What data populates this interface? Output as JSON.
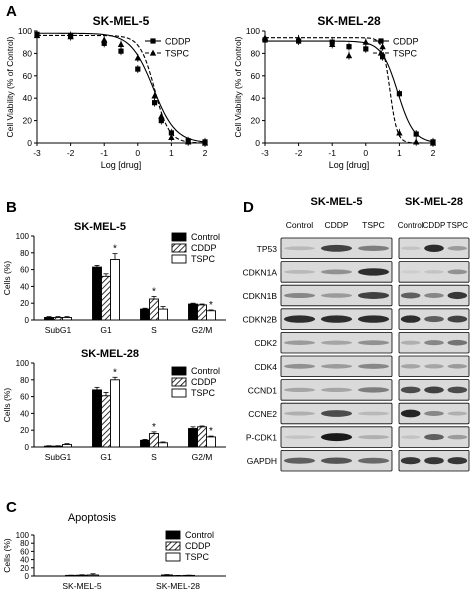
{
  "colors": {
    "black": "#000000",
    "white": "#ffffff",
    "axis": "#000000",
    "blot_bg": "#dcdcdc"
  },
  "panel_letters": [
    "A",
    "B",
    "C",
    "D"
  ],
  "chart_data": [
    {
      "panel": "A",
      "type": "line",
      "title": "SK-MEL-5",
      "xlabel": "Log [drug]",
      "ylabel": "Cell Viability (% of Control)",
      "xlim": [
        -3,
        2
      ],
      "ylim": [
        0,
        100
      ],
      "xticks": [
        "-3",
        "-2",
        "-1",
        "0",
        "1",
        "2"
      ],
      "yticks": [
        "0",
        "20",
        "40",
        "60",
        "80",
        "100"
      ],
      "legend": [
        "CDDP",
        "TSPC"
      ],
      "legend_position": "top-right",
      "series": [
        {
          "name": "CDDP",
          "marker": "square",
          "style": "solid",
          "x": [
            -3,
            -2,
            -1,
            -0.5,
            0,
            0.5,
            0.7,
            1,
            1.5,
            2
          ],
          "y": [
            97,
            96,
            89,
            82,
            66,
            36,
            20,
            9,
            2,
            1
          ],
          "curve": {
            "top": 98,
            "bottom": 0,
            "logIC50": 0.46,
            "hill": 1.3
          }
        },
        {
          "name": "TSPC",
          "marker": "triangle",
          "style": "dashed",
          "x": [
            -3,
            -2,
            -1,
            -0.5,
            0,
            0.5,
            0.7,
            1,
            1.5,
            2
          ],
          "y": [
            96,
            95,
            92,
            88,
            76,
            42,
            24,
            5,
            1,
            0
          ],
          "curve": {
            "top": 96,
            "bottom": 0,
            "logIC50": 0.5,
            "hill": 2.0
          }
        }
      ]
    },
    {
      "panel": "A",
      "type": "line",
      "title": "SK-MEL-28",
      "xlabel": "Log [drug]",
      "ylabel": "Cell Viability (% of Control)",
      "xlim": [
        -3,
        2
      ],
      "ylim": [
        0,
        100
      ],
      "xticks": [
        "-3",
        "-2",
        "-1",
        "0",
        "1",
        "2"
      ],
      "yticks": [
        "0",
        "20",
        "40",
        "60",
        "80",
        "100"
      ],
      "legend": [
        "CDDP",
        "TSPC"
      ],
      "legend_position": "top-right",
      "series": [
        {
          "name": "CDDP",
          "marker": "square",
          "style": "solid",
          "x": [
            -3,
            -2,
            -1,
            -0.5,
            0,
            0.5,
            1,
            1.5,
            2
          ],
          "y": [
            92,
            91,
            90,
            86,
            84,
            77,
            44,
            8,
            1
          ],
          "curve": {
            "top": 91,
            "bottom": 0,
            "logIC50": 0.95,
            "hill": 1.8
          }
        },
        {
          "name": "TSPC",
          "marker": "triangle",
          "style": "dashed",
          "x": [
            -3,
            -2,
            -1,
            -0.5,
            0,
            0.5,
            1,
            1.5,
            2
          ],
          "y": [
            94,
            93,
            88,
            78,
            90,
            86,
            9,
            1,
            0
          ],
          "curve": {
            "top": 94,
            "bottom": 0,
            "logIC50": 0.72,
            "hill": 4.0
          }
        }
      ]
    },
    {
      "panel": "B",
      "type": "bar",
      "title": "SK-MEL-5",
      "ylabel": "Cells (%)",
      "ylim": [
        0,
        100
      ],
      "yticks": [
        "0",
        "20",
        "40",
        "60",
        "80",
        "100"
      ],
      "categories": [
        "SubG1",
        "G1",
        "S",
        "G2/M"
      ],
      "legend": [
        "Control",
        "CDDP",
        "TSPC"
      ],
      "legend_position": "top-right",
      "series": [
        {
          "name": "Control",
          "values": [
            3,
            63,
            13,
            19
          ],
          "errors": [
            1,
            2,
            1,
            1
          ]
        },
        {
          "name": "CDDP",
          "values": [
            3,
            52,
            25,
            18
          ],
          "errors": [
            1,
            3,
            3,
            1
          ]
        },
        {
          "name": "TSPC",
          "values": [
            3,
            72,
            13,
            11
          ],
          "errors": [
            1,
            7,
            3,
            1
          ]
        }
      ],
      "annotations": [
        {
          "category": "G1",
          "series": "TSPC",
          "text": "*"
        },
        {
          "category": "S",
          "series": "CDDP",
          "text": "*"
        },
        {
          "category": "G2/M",
          "series": "TSPC",
          "text": "*"
        }
      ]
    },
    {
      "panel": "B",
      "type": "bar",
      "title": "SK-MEL-28",
      "ylabel": "Cells (%)",
      "ylim": [
        0,
        100
      ],
      "yticks": [
        "0",
        "20",
        "40",
        "60",
        "80",
        "100"
      ],
      "categories": [
        "SubG1",
        "G1",
        "S",
        "G2/M"
      ],
      "legend": [
        "Control",
        "CDDP",
        "TSPC"
      ],
      "legend_position": "top-right",
      "series": [
        {
          "name": "Control",
          "values": [
            1,
            68,
            8,
            22
          ],
          "errors": [
            0.5,
            3,
            1,
            2
          ]
        },
        {
          "name": "CDDP",
          "values": [
            1,
            61,
            16,
            24
          ],
          "errors": [
            0.5,
            4,
            2,
            1
          ]
        },
        {
          "name": "TSPC",
          "values": [
            3,
            80,
            5,
            12
          ],
          "errors": [
            1,
            3,
            1,
            1
          ]
        }
      ],
      "annotations": [
        {
          "category": "G1",
          "series": "TSPC",
          "text": "*"
        },
        {
          "category": "S",
          "series": "CDDP",
          "text": "*"
        },
        {
          "category": "G2/M",
          "series": "TSPC",
          "text": "*"
        }
      ]
    },
    {
      "panel": "C",
      "type": "bar",
      "title": "Apoptosis",
      "ylabel": "Cells (%)",
      "ylim": [
        0,
        100
      ],
      "yticks": [
        "0",
        "20",
        "40",
        "60",
        "80",
        "100"
      ],
      "categories": [
        "SK-MEL-5",
        "SK-MEL-28"
      ],
      "legend": [
        "Control",
        "CDDP",
        "TSPC"
      ],
      "legend_position": "top-right",
      "series": [
        {
          "name": "Control",
          "values": [
            1.5,
            2.5
          ],
          "errors": [
            0.5,
            1
          ]
        },
        {
          "name": "CDDP",
          "values": [
            2,
            1
          ],
          "errors": [
            1,
            0.5
          ]
        },
        {
          "name": "TSPC",
          "values": [
            2.5,
            1.5
          ],
          "errors": [
            3,
            0.5
          ]
        }
      ]
    },
    {
      "panel": "D",
      "type": "table",
      "columns_left": {
        "cell_line": "SK-MEL-5",
        "lanes": [
          "Control",
          "CDDP",
          "TSPC"
        ]
      },
      "columns_right": {
        "cell_line": "SK-MEL-28",
        "lanes": [
          "Control",
          "CDDP",
          "TSPC"
        ]
      },
      "proteins": [
        "TP53",
        "CDKN1A",
        "CDKN1B",
        "CDKN2B",
        "CDK2",
        "CDK4",
        "CCND1",
        "CCNE2",
        "P-CDK1",
        "GAPDH"
      ],
      "band_intensity_left": [
        [
          0.15,
          0.75,
          0.45
        ],
        [
          0.15,
          0.35,
          0.85
        ],
        [
          0.4,
          0.3,
          0.75
        ],
        [
          0.85,
          0.85,
          0.85
        ],
        [
          0.3,
          0.25,
          0.35
        ],
        [
          0.35,
          0.3,
          0.4
        ],
        [
          0.25,
          0.25,
          0.45
        ],
        [
          0.2,
          0.7,
          0.15
        ],
        [
          0.1,
          0.95,
          0.2
        ],
        [
          0.6,
          0.65,
          0.55
        ]
      ],
      "band_intensity_right": [
        [
          0.1,
          0.85,
          0.3
        ],
        [
          0.05,
          0.1,
          0.35
        ],
        [
          0.6,
          0.4,
          0.8
        ],
        [
          0.85,
          0.6,
          0.75
        ],
        [
          0.2,
          0.4,
          0.5
        ],
        [
          0.25,
          0.25,
          0.3
        ],
        [
          0.7,
          0.75,
          0.7
        ],
        [
          0.9,
          0.4,
          0.2
        ],
        [
          0.1,
          0.6,
          0.3
        ],
        [
          0.8,
          0.8,
          0.8
        ]
      ]
    }
  ]
}
